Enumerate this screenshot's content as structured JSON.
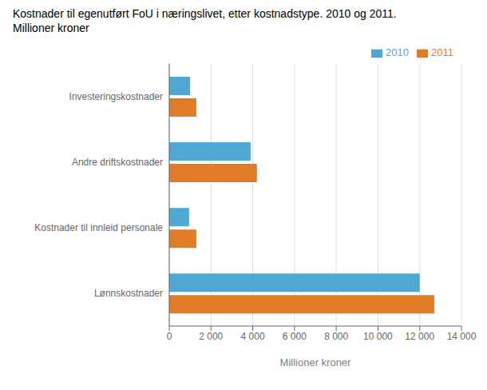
{
  "chart_data": {
    "type": "bar",
    "orientation": "horizontal",
    "title": "Kostnader til egenutført FoU i næringslivet, etter kostnadstype. 2010 og 2011.",
    "subtitle": "Millioner kroner",
    "x_label": "Millioner kroner",
    "categories": [
      "Lønnskostnader",
      "Kostnader til innleid personale",
      "Andre driftskostnader",
      "Investeringskostnader"
    ],
    "series": [
      {
        "name": "2010",
        "color": "#4EA8D2",
        "values": [
          12000,
          950,
          3900,
          1000
        ]
      },
      {
        "name": "2011",
        "color": "#E07B28",
        "values": [
          12700,
          1300,
          4200,
          1300
        ]
      }
    ],
    "xlim": [
      0,
      14000
    ],
    "xticks": [
      0,
      {
        "value": 2000,
        "label": "2 000"
      },
      {
        "value": 4000,
        "label": "4 000"
      },
      {
        "value": 6000,
        "label": "6 000"
      },
      {
        "value": 8000,
        "label": "8 000"
      },
      {
        "value": 10000,
        "label": "10 000"
      },
      {
        "value": 12000,
        "label": "12 000"
      },
      {
        "value": 14000,
        "label": "14 000"
      }
    ],
    "grid": true,
    "legend": "upper right"
  }
}
